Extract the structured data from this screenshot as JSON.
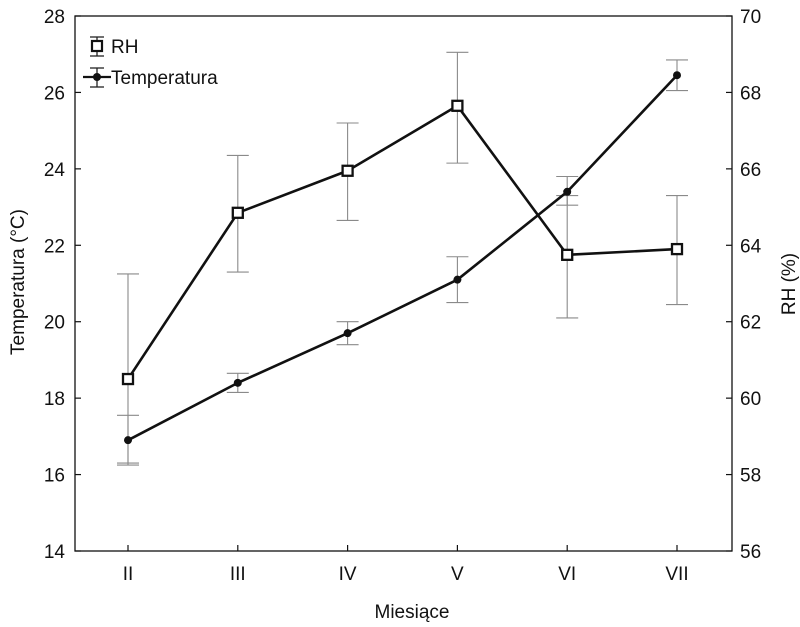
{
  "chart_data": {
    "type": "line",
    "xlabel": "Miesiące",
    "ylabel_left": "Temperatura (°C)",
    "ylabel_right": "RH (%)",
    "categories": [
      "II",
      "III",
      "IV",
      "V",
      "VI",
      "VII"
    ],
    "y_left": {
      "lim": [
        14,
        28
      ],
      "ticks": [
        14,
        16,
        18,
        20,
        22,
        24,
        26,
        28
      ]
    },
    "y_right": {
      "lim": [
        56,
        70
      ],
      "ticks": [
        56,
        58,
        60,
        62,
        64,
        66,
        68,
        70
      ]
    },
    "grid": false,
    "legend": "top-left",
    "series": [
      {
        "name": "RH",
        "axis": "right",
        "marker": "open-square",
        "values": [
          60.5,
          64.85,
          65.95,
          67.65,
          63.75,
          63.9
        ],
        "error_low": [
          58.3,
          63.3,
          64.65,
          66.15,
          62.1,
          62.45
        ],
        "error_high": [
          63.25,
          66.35,
          67.2,
          69.05,
          65.3,
          65.3
        ]
      },
      {
        "name": "Temperatura",
        "axis": "left",
        "marker": "filled-circle",
        "values": [
          16.9,
          18.4,
          19.7,
          21.1,
          23.4,
          26.45
        ],
        "error_low": [
          16.25,
          18.15,
          19.4,
          20.5,
          23.05,
          26.05
        ],
        "error_high": [
          17.55,
          18.65,
          20.0,
          21.7,
          23.8,
          26.85
        ]
      }
    ]
  }
}
